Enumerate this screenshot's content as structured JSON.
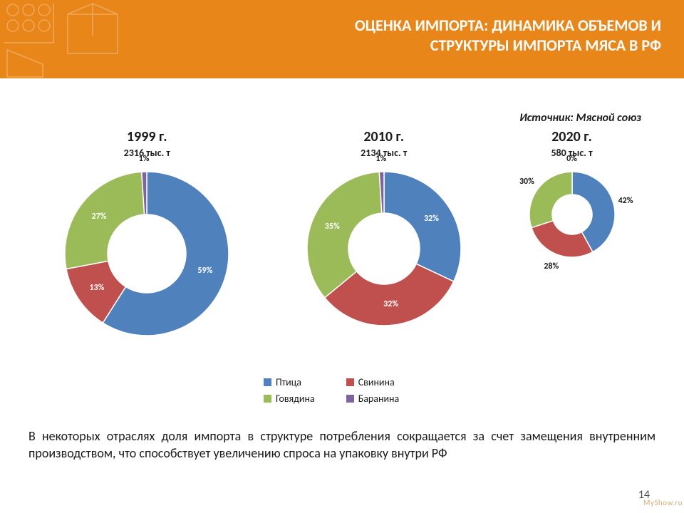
{
  "colors": {
    "banner": "#e8861a",
    "blue": "#4f81bd",
    "red": "#c0504d",
    "green": "#9bbb59",
    "purple": "#8064a2",
    "white": "#ffffff",
    "text": "#1a1a1a"
  },
  "title": "ОЦЕНКА ИМПОРТА: ДИНАМИКА ОБЪЕМОВ И СТРУКТУРЫ ИМПОРТА МЯСА В РФ",
  "source": "Источник: Мясной союз",
  "categories": [
    {
      "key": "poultry",
      "label": "Птица",
      "color": "#4f81bd"
    },
    {
      "key": "pork",
      "label": "Свинина",
      "color": "#c0504d"
    },
    {
      "key": "beef",
      "label": "Говядина",
      "color": "#9bbb59"
    },
    {
      "key": "lamb",
      "label": "Баранина",
      "color": "#8064a2"
    }
  ],
  "charts": [
    {
      "id": "1999",
      "year": "1999 г.",
      "volume": "2316 тыс. т",
      "outerR": 115,
      "innerR": 55,
      "slices": [
        {
          "cat": "poultry",
          "value": 59,
          "label": "59%",
          "labelColor": "light"
        },
        {
          "cat": "pork",
          "value": 13,
          "label": "13%",
          "labelColor": "light"
        },
        {
          "cat": "beef",
          "value": 27,
          "label": "27%",
          "labelColor": "light"
        },
        {
          "cat": "lamb",
          "value": 1,
          "label": "1%",
          "labelColor": "dark",
          "labelOutside": true
        }
      ]
    },
    {
      "id": "2010",
      "year": "2010 г.",
      "volume": "2134 тыс. т",
      "outerR": 108,
      "innerR": 50,
      "slices": [
        {
          "cat": "poultry",
          "value": 32,
          "label": "32%",
          "labelColor": "light"
        },
        {
          "cat": "pork",
          "value": 32,
          "label": "32%",
          "labelColor": "light"
        },
        {
          "cat": "beef",
          "value": 35,
          "label": "35%",
          "labelColor": "light"
        },
        {
          "cat": "lamb",
          "value": 1,
          "label": "1%",
          "labelColor": "dark",
          "labelOutside": true
        }
      ]
    },
    {
      "id": "2020",
      "year": "2020 г.",
      "volume": "580 тыс. т",
      "outerR": 60,
      "innerR": 28,
      "slices": [
        {
          "cat": "poultry",
          "value": 42,
          "label": "42%",
          "labelColor": "dark",
          "labelOutside": true
        },
        {
          "cat": "pork",
          "value": 28,
          "label": "28%",
          "labelColor": "dark",
          "labelOutside": true
        },
        {
          "cat": "beef",
          "value": 30,
          "label": "30%",
          "labelColor": "dark",
          "labelOutside": true
        },
        {
          "cat": "lamb",
          "value": 0,
          "label": "0%",
          "labelColor": "dark",
          "labelOutside": true
        }
      ]
    }
  ],
  "bodyText": "В некоторых отраслях доля импорта в структуре потребления сокращается за счет замещения внутренним производством, что способствует увеличению спроса на упаковку внутри РФ",
  "pageNumber": "14",
  "watermark": "MyShow.ru"
}
